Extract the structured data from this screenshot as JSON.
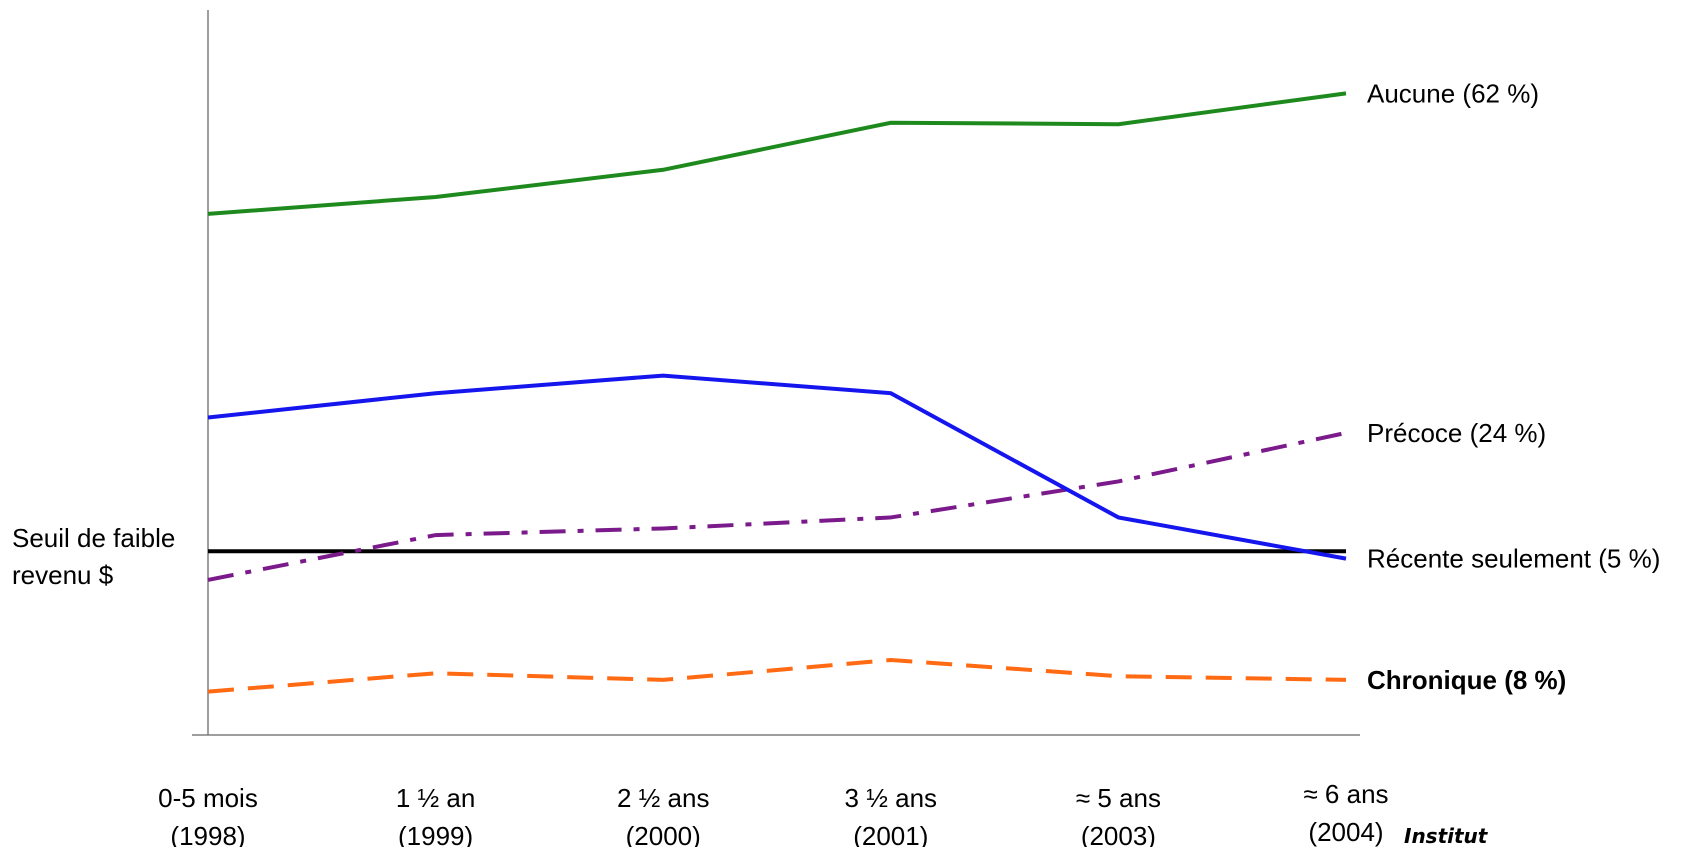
{
  "chart_data": {
    "type": "line",
    "title": "",
    "xlabel": "",
    "ylabel": "",
    "categories": [
      [
        "0-5 mois",
        "(1998)"
      ],
      [
        "1 ½ an",
        "(1999)"
      ],
      [
        "2 ½ ans",
        "(2000)"
      ],
      [
        "3 ½ ans",
        "(2001)"
      ],
      [
        "≈ 5 ans",
        "(2003)"
      ],
      [
        "≈ 6 ans",
        "(2004)"
      ]
    ],
    "ylim": [
      0,
      100
    ],
    "threshold": {
      "label_line1": "Seuil de faible",
      "label_line2": "revenu $",
      "value": 25,
      "color": "#000000"
    },
    "series": [
      {
        "name": "Aucune (62 %)",
        "color": "#1e8a1e",
        "dash": "solid",
        "bold_label": false,
        "values": [
          70.9,
          73.2,
          76.9,
          83.3,
          83.1,
          87.3
        ]
      },
      {
        "name": "Précoce (24 %)",
        "color": "#7b1a8a",
        "dash": "dashdot",
        "bold_label": false,
        "values": [
          21.1,
          27.2,
          28.1,
          29.6,
          34.5,
          41.1
        ]
      },
      {
        "name": "Récente seulement (5 %)",
        "color": "#1515ee",
        "dash": "solid",
        "bold_label": false,
        "values": [
          43.2,
          46.5,
          48.9,
          46.5,
          29.6,
          24.0
        ]
      },
      {
        "name": "Chronique (8 %)",
        "color": "#ff6a13",
        "dash": "dash",
        "bold_label": true,
        "values": [
          5.9,
          8.4,
          7.5,
          10.2,
          8.0,
          7.5
        ]
      }
    ],
    "legend": "right-of-lines"
  },
  "watermark": "Institut"
}
